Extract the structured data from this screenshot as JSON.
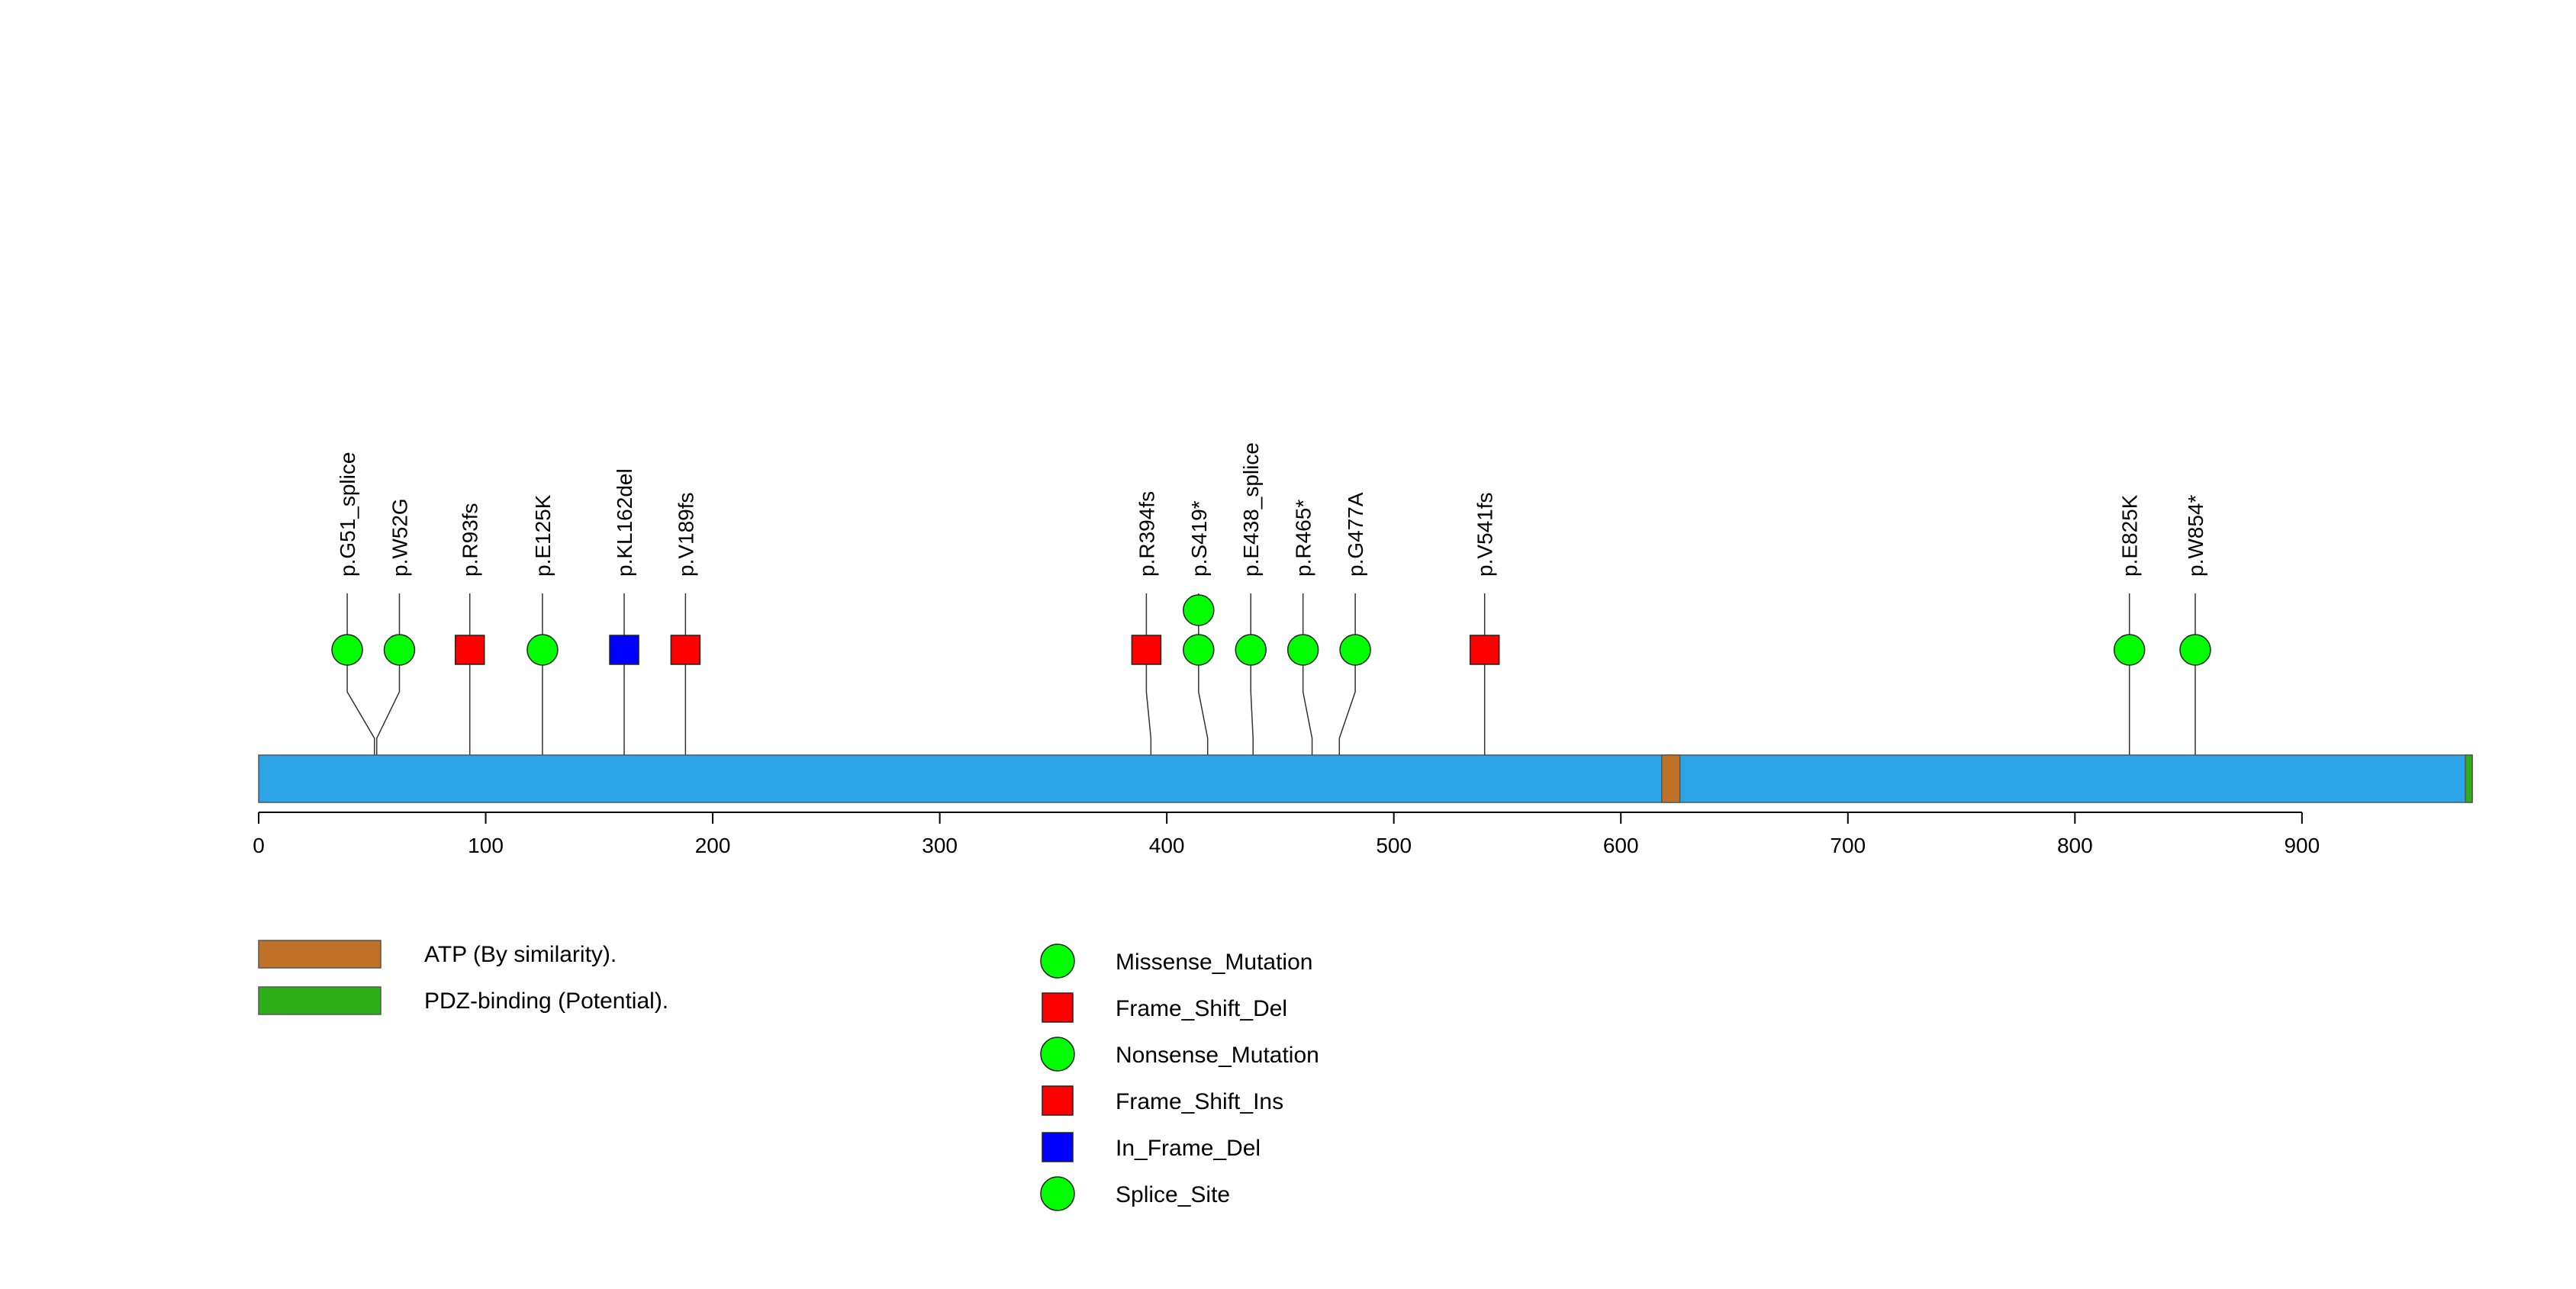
{
  "chart_data": {
    "type": "lollipop",
    "protein_length": 975,
    "axis": {
      "ticks": [
        0,
        100,
        200,
        300,
        400,
        500,
        600,
        700,
        800,
        900
      ]
    },
    "colors": {
      "protein": "#2BA5E8",
      "ATP": "#BF7127",
      "PDZ": "#2DAF18",
      "Missense_Mutation": "#00FF00",
      "Frame_Shift_Del": "#FF0000",
      "Nonsense_Mutation": "#00FF00",
      "Frame_Shift_Ins": "#FF0000",
      "In_Frame_Del": "#0000FF",
      "Splice_Site": "#00FF00"
    },
    "domains": [
      {
        "name": "ATP (By similarity).",
        "key": "ATP",
        "start": 618,
        "end": 626
      },
      {
        "name": "PDZ-binding (Potential).",
        "key": "PDZ",
        "start": 972,
        "end": 975
      }
    ],
    "mutations": [
      {
        "label": "p.G51_splice",
        "pos": 51,
        "display": 39,
        "shape": "circle",
        "type": "Splice_Site",
        "stack": 1
      },
      {
        "label": "p.W52G",
        "pos": 52,
        "display": 62,
        "shape": "circle",
        "type": "Missense_Mutation",
        "stack": 1
      },
      {
        "label": "p.R93fs",
        "pos": 93,
        "display": 93,
        "shape": "square",
        "type": "Frame_Shift_Del",
        "stack": 1
      },
      {
        "label": "p.E125K",
        "pos": 125,
        "display": 125,
        "shape": "circle",
        "type": "Missense_Mutation",
        "stack": 1
      },
      {
        "label": "p.KL162del",
        "pos": 161,
        "display": 161,
        "shape": "square",
        "type": "In_Frame_Del",
        "stack": 1
      },
      {
        "label": "p.V189fs",
        "pos": 188,
        "display": 188,
        "shape": "square",
        "type": "Frame_Shift_Del",
        "stack": 1
      },
      {
        "label": "p.R394fs",
        "pos": 393,
        "display": 391,
        "shape": "square",
        "type": "Frame_Shift_Del",
        "stack": 1
      },
      {
        "label": "p.S419*",
        "pos": 418,
        "display": 414,
        "shape": "circle",
        "type": "Nonsense_Mutation",
        "stack": 2
      },
      {
        "label": "p.E438_splice",
        "pos": 438,
        "display": 437,
        "shape": "circle",
        "type": "Splice_Site",
        "stack": 1
      },
      {
        "label": "p.R465*",
        "pos": 464,
        "display": 460,
        "shape": "circle",
        "type": "Nonsense_Mutation",
        "stack": 1
      },
      {
        "label": "p.G477A",
        "pos": 476,
        "display": 483,
        "shape": "circle",
        "type": "Missense_Mutation",
        "stack": 1
      },
      {
        "label": "p.V541fs",
        "pos": 540,
        "display": 540,
        "shape": "square",
        "type": "Frame_Shift_Del",
        "stack": 1
      },
      {
        "label": "p.E825K",
        "pos": 824,
        "display": 824,
        "shape": "circle",
        "type": "Missense_Mutation",
        "stack": 1
      },
      {
        "label": "p.W854*",
        "pos": 853,
        "display": 853,
        "shape": "circle",
        "type": "Nonsense_Mutation",
        "stack": 1
      }
    ],
    "legend_domains": [
      {
        "key": "ATP",
        "label": "ATP (By similarity)."
      },
      {
        "key": "PDZ",
        "label": "PDZ-binding (Potential)."
      }
    ],
    "legend_mutations": [
      {
        "key": "Missense_Mutation",
        "label": "Missense_Mutation",
        "shape": "circle"
      },
      {
        "key": "Frame_Shift_Del",
        "label": "Frame_Shift_Del",
        "shape": "square"
      },
      {
        "key": "Nonsense_Mutation",
        "label": "Nonsense_Mutation",
        "shape": "circle"
      },
      {
        "key": "Frame_Shift_Ins",
        "label": "Frame_Shift_Ins",
        "shape": "square"
      },
      {
        "key": "In_Frame_Del",
        "label": "In_Frame_Del",
        "shape": "square"
      },
      {
        "key": "Splice_Site",
        "label": "Splice_Site",
        "shape": "circle"
      }
    ]
  }
}
